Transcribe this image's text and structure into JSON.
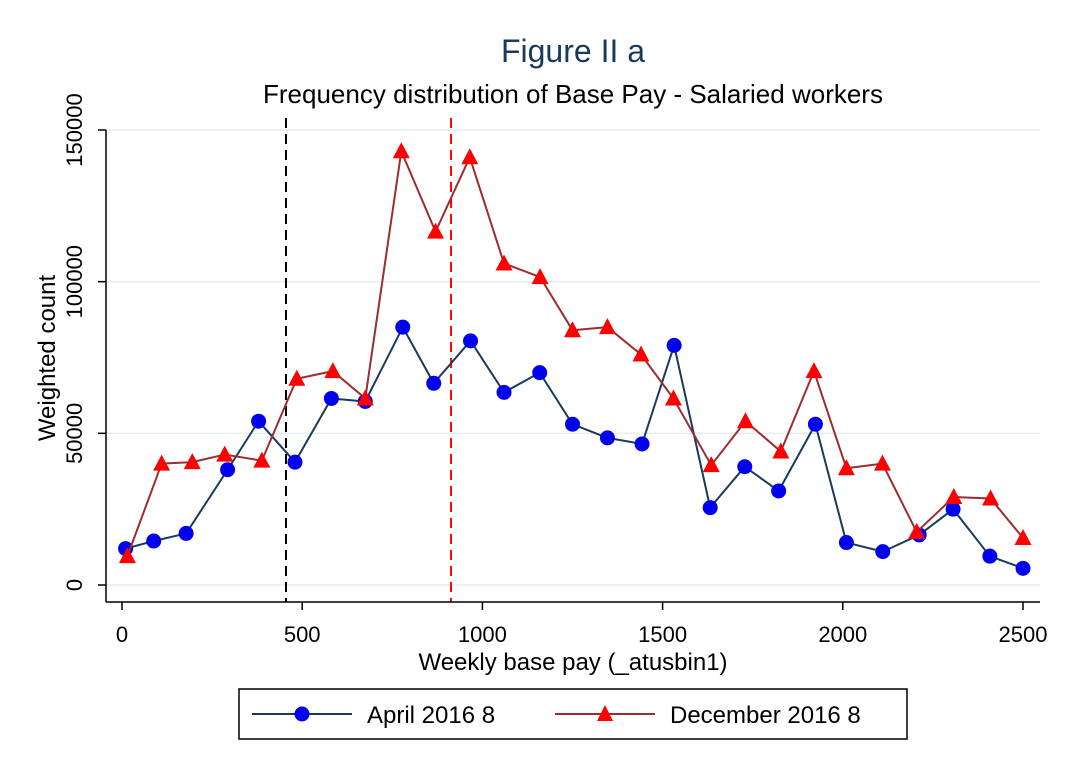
{
  "chart_data": {
    "type": "line",
    "title": "Figure II a",
    "subtitle": "Frequency distribution of Base Pay - Salaried workers",
    "xlabel": "Weekly base pay (_atusbin1)",
    "ylabel": "Weighted count",
    "xlim": [
      0,
      2500
    ],
    "ylim": [
      0,
      150000
    ],
    "x_ticks": [
      0,
      500,
      1000,
      1500,
      2000,
      2500
    ],
    "x_tick_labels": [
      "0",
      "500",
      "1000",
      "1500",
      "2000",
      "2500"
    ],
    "y_ticks": [
      0,
      50000,
      100000,
      150000
    ],
    "y_tick_labels": [
      "0",
      "50000",
      "100000",
      "150000"
    ],
    "grid": true,
    "legend_position": "bottom",
    "reference_lines": [
      {
        "x": 455,
        "color": "#000000",
        "style": "dashed"
      },
      {
        "x": 913,
        "color": "#ff0000",
        "style": "dashed"
      }
    ],
    "series": [
      {
        "name": "April 2016 8",
        "color": "#1a3a5c",
        "marker": "circle",
        "marker_color": "#0000ee",
        "x": [
          10,
          88,
          178,
          293,
          379,
          480,
          581,
          675,
          779,
          865,
          967,
          1060,
          1159,
          1250,
          1347,
          1443,
          1532,
          1632,
          1728,
          1822,
          1924,
          2010,
          2111,
          2212,
          2306,
          2408,
          2500
        ],
        "y": [
          12000,
          14500,
          17000,
          38000,
          54000,
          40500,
          61500,
          60500,
          85000,
          66500,
          80500,
          63500,
          70000,
          53000,
          48500,
          46500,
          79000,
          25500,
          39000,
          31000,
          53000,
          14000,
          11000,
          16500,
          25000,
          9500,
          5500
        ]
      },
      {
        "name": "December 2016 8",
        "color": "#9b2d30",
        "marker": "triangle",
        "marker_color": "#ff0000",
        "x": [
          15,
          110,
          195,
          285,
          388,
          485,
          585,
          675,
          775,
          870,
          965,
          1060,
          1160,
          1250,
          1347,
          1440,
          1530,
          1635,
          1730,
          1828,
          1920,
          2010,
          2110,
          2205,
          2308,
          2410,
          2500
        ],
        "y": [
          9500,
          40000,
          40500,
          43000,
          41000,
          68000,
          70500,
          61500,
          143000,
          116500,
          141000,
          106000,
          101500,
          84000,
          85000,
          76000,
          61500,
          39500,
          54000,
          44000,
          70500,
          38500,
          40000,
          17500,
          29000,
          28500,
          15500
        ]
      }
    ]
  }
}
